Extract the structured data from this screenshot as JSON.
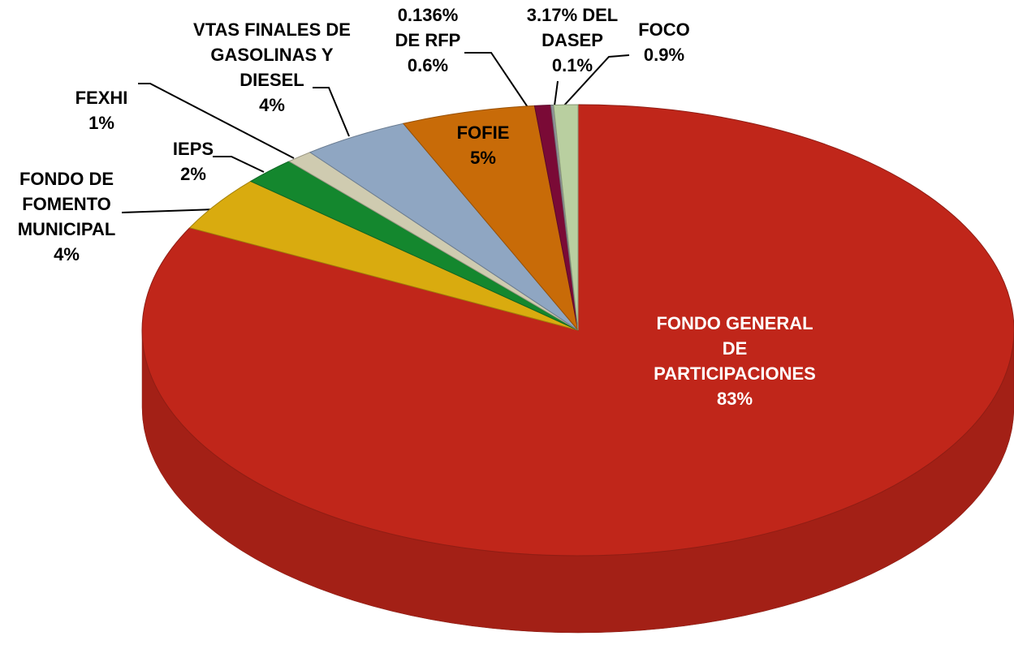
{
  "chart_data": {
    "type": "pie3d",
    "categories": [
      "FONDO GENERAL DE PARTICIPACIONES",
      "FONDO DE FOMENTO MUNICIPAL",
      "IEPS",
      "FEXHI",
      "VTAS FINALES DE GASOLINAS Y DIESEL",
      "FOFIE",
      "0.136% DE RFP",
      "3.17% DEL DASEP",
      "FOCO"
    ],
    "values": [
      83,
      4,
      2,
      1,
      4,
      5,
      0.6,
      0.1,
      0.9
    ],
    "value_labels": [
      "83%",
      "4%",
      "2%",
      "1%",
      "4%",
      "5%",
      "0.6%",
      "0.1%",
      "0.9%"
    ],
    "colors": [
      "#c0261a",
      "#d9ab0f",
      "#14872e",
      "#cfcbb0",
      "#8fa6c2",
      "#c86b08",
      "#7a0a36",
      "#8f9298",
      "#b9cfa0"
    ]
  }
}
